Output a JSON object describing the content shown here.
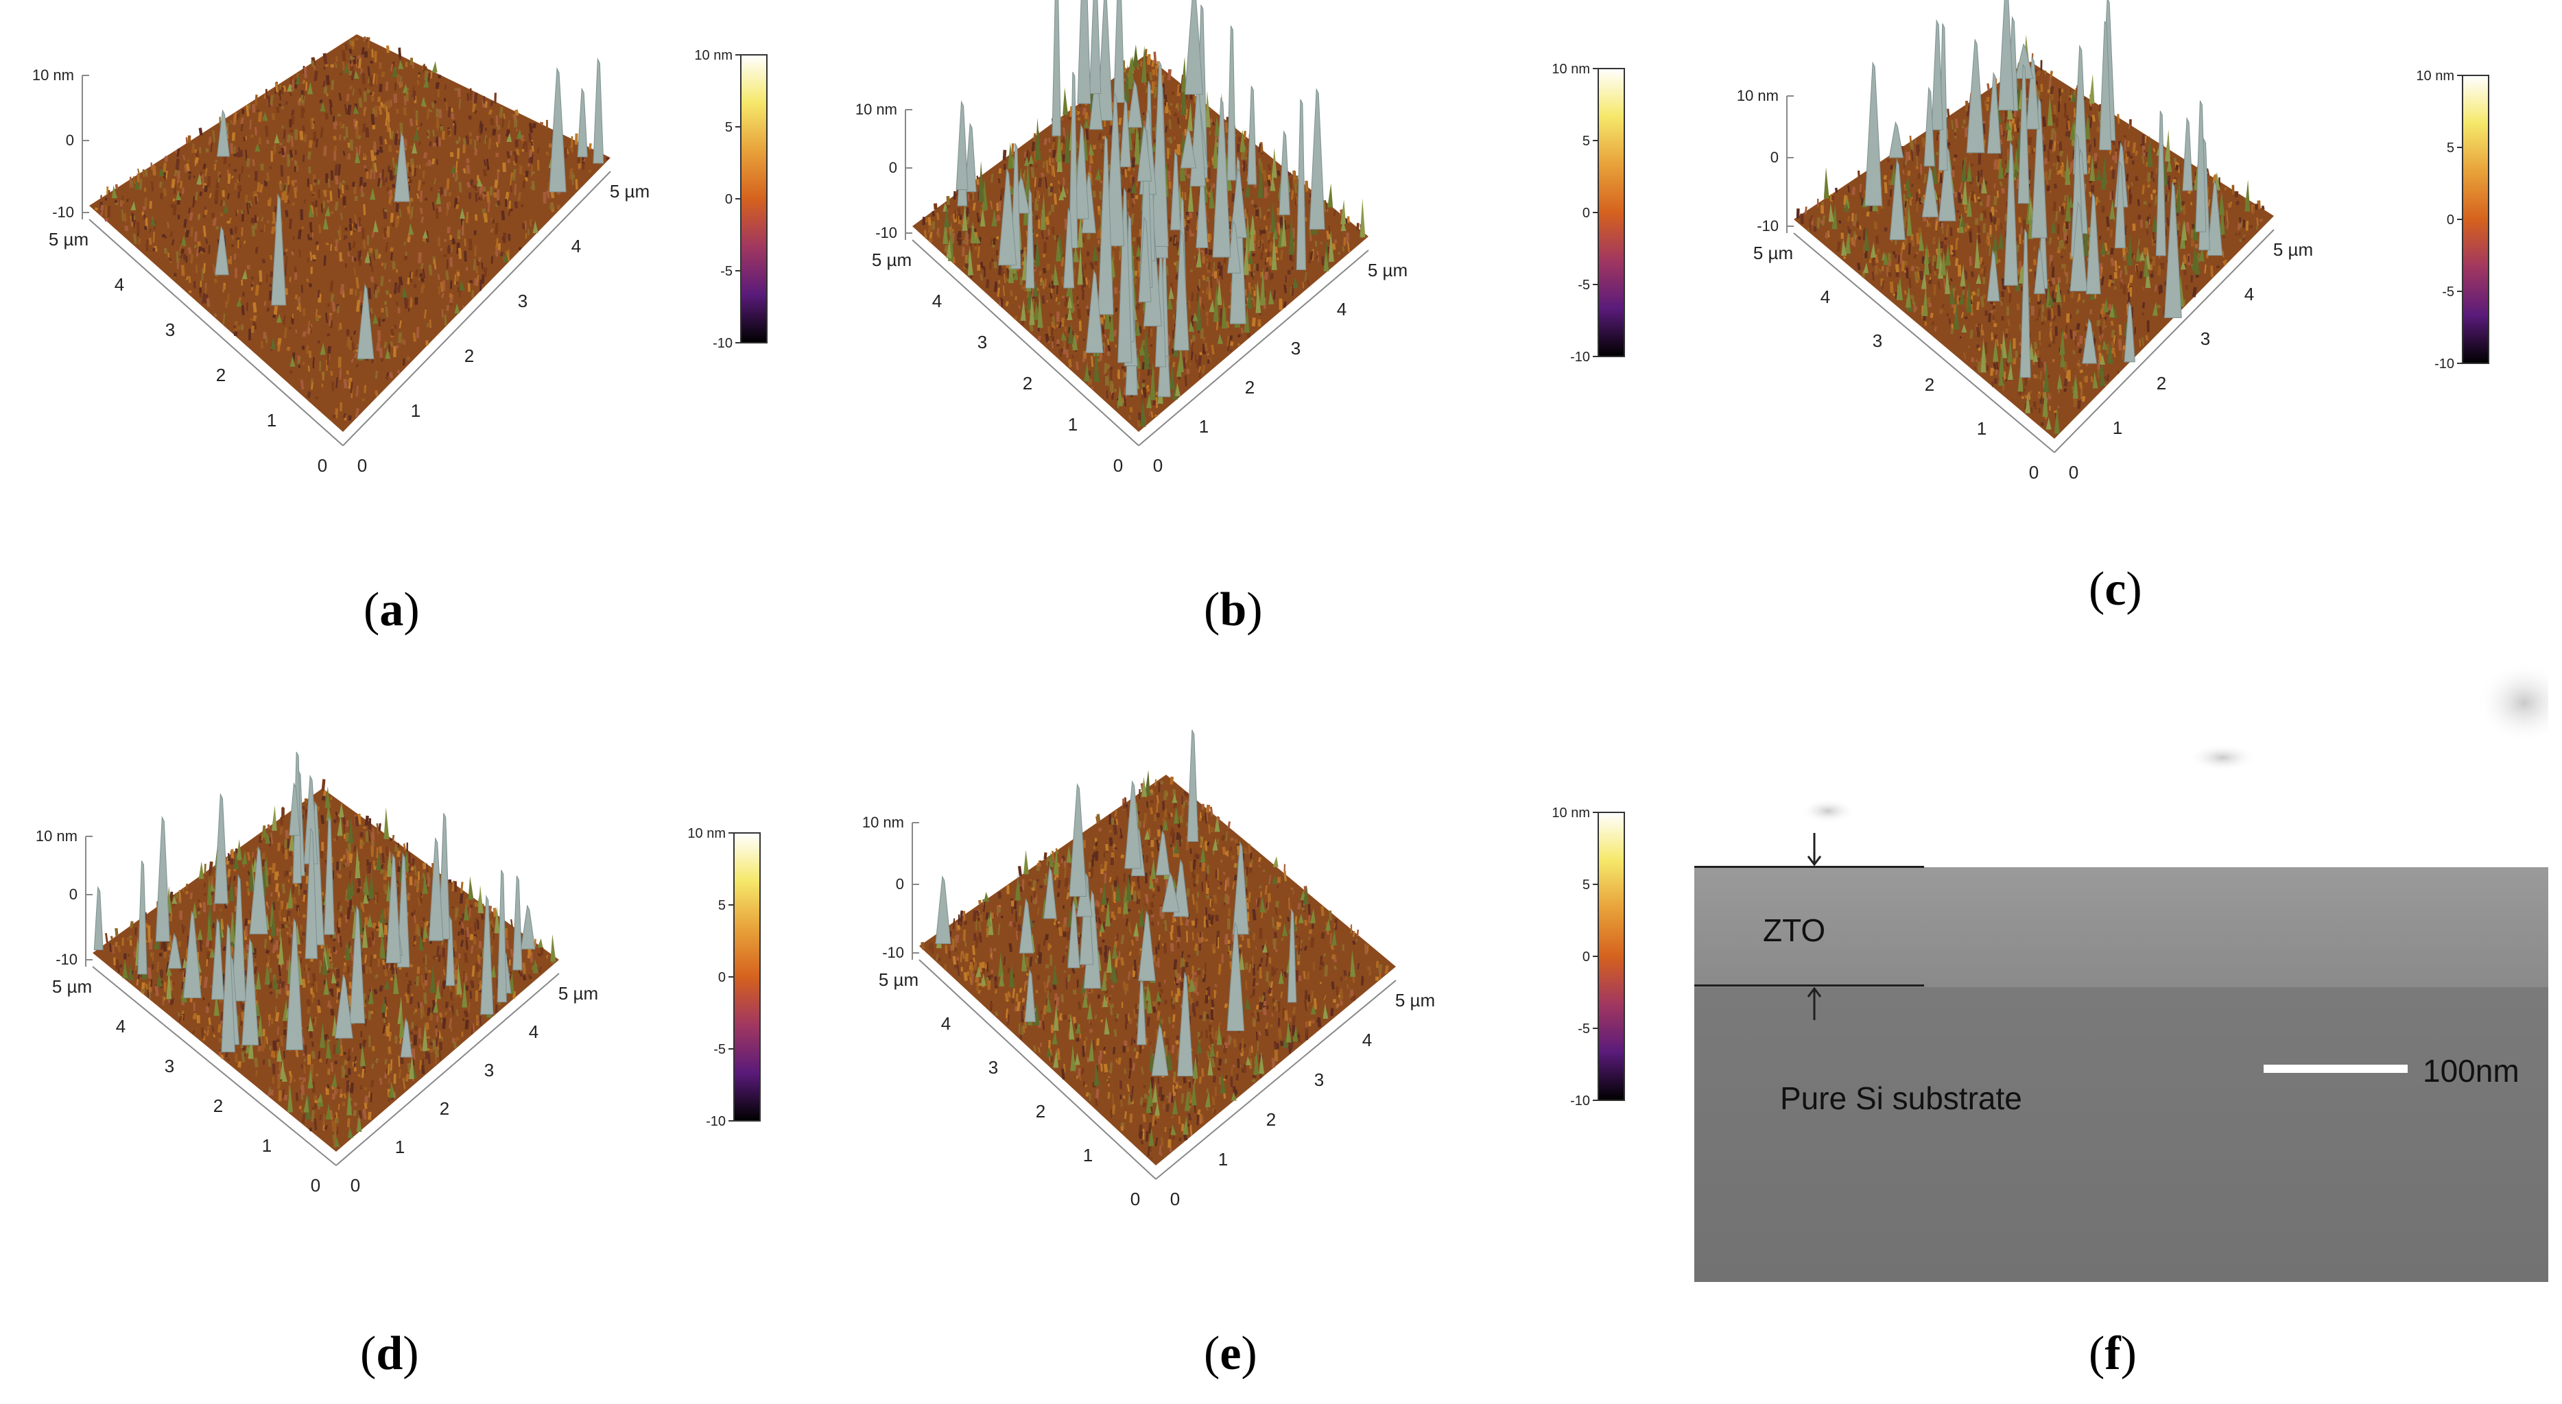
{
  "panels": [
    {
      "id": "a",
      "caption": "a"
    },
    {
      "id": "b",
      "caption": "b"
    },
    {
      "id": "c",
      "caption": "c"
    },
    {
      "id": "d",
      "caption": "d"
    },
    {
      "id": "e",
      "caption": "e"
    },
    {
      "id": "f",
      "caption": "f"
    }
  ],
  "afm": {
    "z_axis_labels": {
      "top": "10 nm",
      "mid": "0",
      "bottom": "-10"
    },
    "xy_axis_labels": [
      "0",
      "1",
      "2",
      "3",
      "4",
      "5 µm"
    ],
    "colorbar_labels": [
      "10 nm",
      "5",
      "0",
      "-5",
      "-10"
    ],
    "colorbar_colors": [
      "#ffffff",
      "#f5e86a",
      "#e8a23a",
      "#d5621e",
      "#a13760",
      "#5a1b7a",
      "#000000"
    ]
  },
  "sem": {
    "film_label": "ZTO",
    "substrate_label": "Pure Si substrate",
    "scale_bar_label": "100nm"
  }
}
